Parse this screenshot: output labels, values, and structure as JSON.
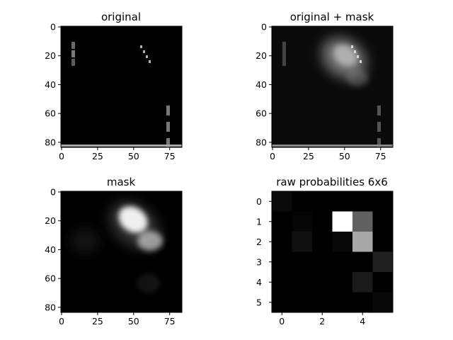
{
  "chart_data": [
    {
      "type": "heatmap",
      "title": "original",
      "colormap": "gray",
      "image_size": [
        84,
        84
      ],
      "xticks": [
        "0",
        "25",
        "50",
        "75"
      ],
      "yticks": [
        "0",
        "20",
        "40",
        "60",
        "80"
      ],
      "content": {
        "vertical_blob_left": {
          "x": 9,
          "y_range": [
            13,
            30
          ]
        },
        "diagonal_dashes": {
          "from": [
            55,
            14
          ],
          "to": [
            63,
            28
          ]
        },
        "right_dashes": {
          "x": 75,
          "y_range": [
            54,
            84
          ]
        },
        "bottom_bar": {
          "y": 83,
          "x_range": [
            0,
            84
          ]
        }
      }
    },
    {
      "type": "heatmap",
      "title": "original + mask",
      "colormap": "gray",
      "image_size": [
        84,
        84
      ],
      "xticks": [
        "0",
        "25",
        "50",
        "75"
      ],
      "yticks": [
        "0",
        "20",
        "40",
        "60",
        "80"
      ],
      "mask_peak": [
        52,
        20
      ]
    },
    {
      "type": "heatmap",
      "title": "mask",
      "colormap": "gray",
      "image_size": [
        84,
        84
      ],
      "xticks": [
        "0",
        "25",
        "50",
        "75"
      ],
      "yticks": [
        "0",
        "20",
        "40",
        "60",
        "80"
      ],
      "mask_peak": [
        52,
        20
      ]
    },
    {
      "type": "heatmap",
      "title": "raw probabilities 6x6",
      "colormap": "gray",
      "xticks": [
        "0",
        "2",
        "4"
      ],
      "yticks": [
        "0",
        "1",
        "2",
        "3",
        "4",
        "5"
      ],
      "values": [
        [
          0.04,
          0.0,
          0.0,
          0.0,
          0.0,
          0.0
        ],
        [
          0.0,
          0.02,
          0.0,
          1.0,
          0.38,
          0.0
        ],
        [
          0.0,
          0.06,
          0.0,
          0.03,
          0.66,
          0.0
        ],
        [
          0.0,
          0.0,
          0.0,
          0.0,
          0.0,
          0.12
        ],
        [
          0.0,
          0.0,
          0.0,
          0.0,
          0.1,
          0.0
        ],
        [
          0.0,
          0.0,
          0.0,
          0.0,
          0.0,
          0.03
        ]
      ]
    }
  ]
}
